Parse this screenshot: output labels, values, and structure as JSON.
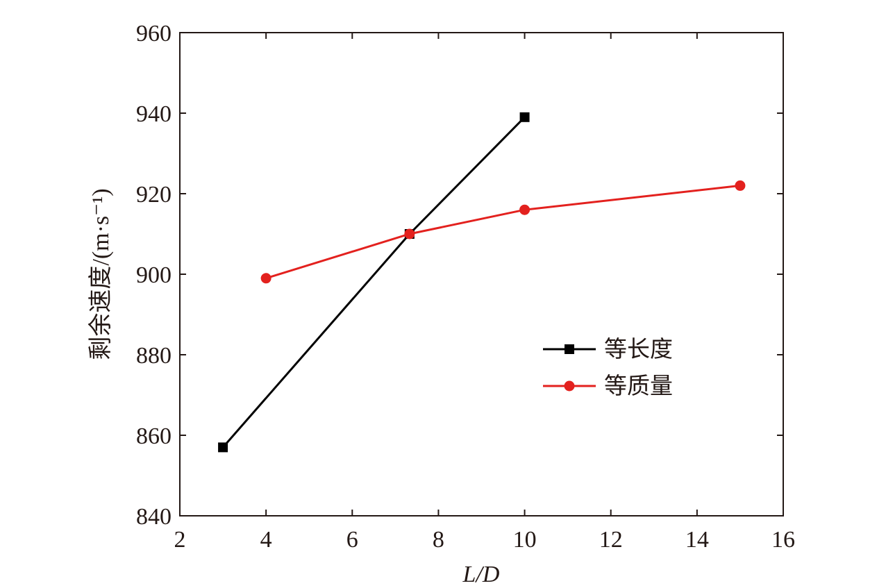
{
  "chart_data": {
    "type": "line",
    "title": "",
    "xlabel": "L/D",
    "ylabel": "剩余速度/(m·s⁻¹)",
    "xlim": [
      2,
      16
    ],
    "ylim": [
      840,
      960
    ],
    "xticks": [
      2,
      4,
      6,
      8,
      10,
      12,
      14,
      16
    ],
    "yticks": [
      840,
      860,
      880,
      900,
      920,
      940,
      960
    ],
    "grid": false,
    "legend_position": "right",
    "series": [
      {
        "name": "等长度",
        "color": "#000000",
        "marker": "square",
        "x": [
          3,
          7.33,
          10
        ],
        "y": [
          857,
          910,
          939
        ]
      },
      {
        "name": "等质量",
        "color": "#e3211e",
        "marker": "circle",
        "x": [
          4,
          7.33,
          10,
          15
        ],
        "y": [
          899,
          910,
          916,
          922
        ]
      }
    ]
  }
}
